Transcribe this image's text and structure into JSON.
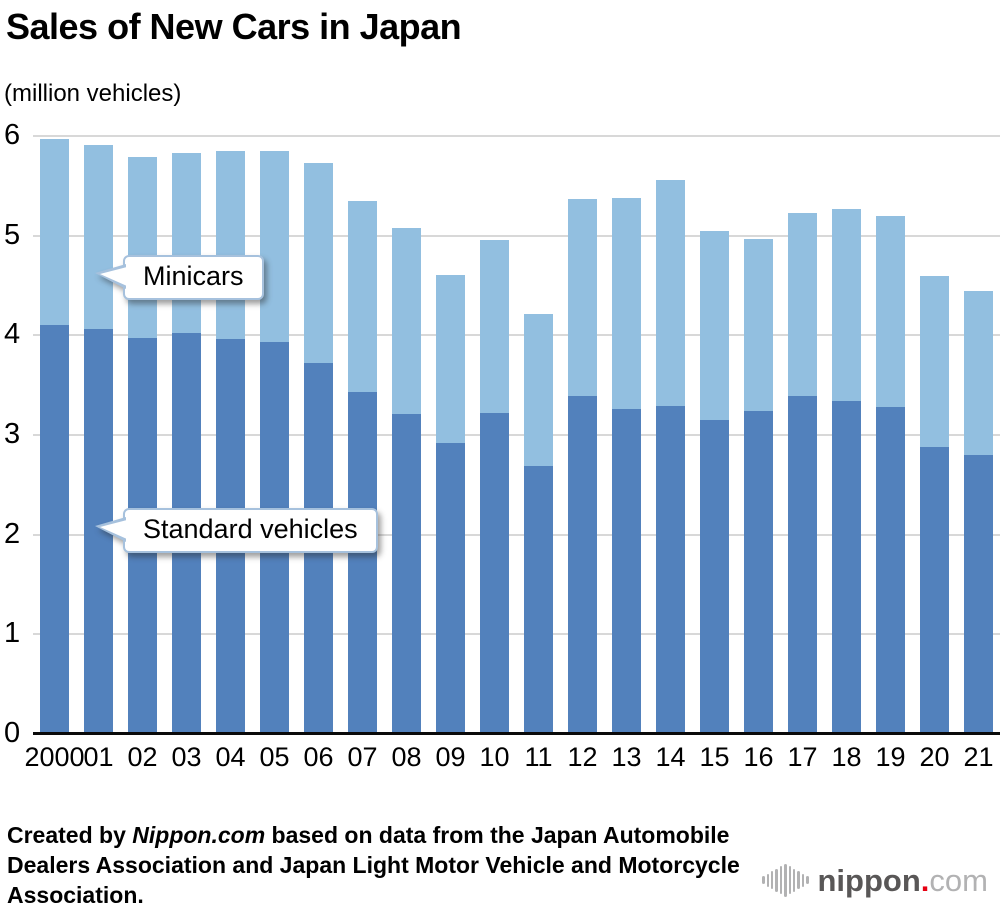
{
  "title": "Sales of New Cars in Japan",
  "subtitle": "(million vehicles)",
  "annotations": {
    "minicars": "Minicars",
    "standard": "Standard vehicles"
  },
  "footer": {
    "prefix": "Created by ",
    "source_name": "Nippon.com",
    "suffix": " based on data from the Japan Automobile Dealers Association and Japan Light Motor Vehicle and Motorcycle Association."
  },
  "logo": {
    "name": "nippon",
    "dot": ".",
    "tld": "com"
  },
  "colors": {
    "standard_bar": "#5281BC",
    "minicar_bar": "#92BFE0",
    "gridline": "#D8D8D8",
    "axis_line": "#0A0A0A",
    "callout_border": "#A6C1DD",
    "logo_dark_gray": "#595757",
    "logo_red": "#E60012",
    "logo_light_gray": "#B2B2B3"
  },
  "chart_data": {
    "type": "bar",
    "stacked": true,
    "title": "Sales of New Cars in Japan",
    "ylabel": "(million vehicles)",
    "ylim": [
      0,
      6
    ],
    "yticks": [
      "0",
      "1",
      "2",
      "3",
      "4",
      "5",
      "6"
    ],
    "grid": true,
    "legend_position": "inline callouts",
    "categories": [
      "2000",
      "01",
      "02",
      "03",
      "04",
      "05",
      "06",
      "07",
      "08",
      "09",
      "10",
      "11",
      "12",
      "13",
      "14",
      "15",
      "16",
      "17",
      "18",
      "19",
      "20",
      "21"
    ],
    "series": [
      {
        "name": "Standard vehicles",
        "color": "#5281BC",
        "values": [
          4.1,
          4.06,
          3.97,
          4.02,
          3.96,
          3.93,
          3.72,
          3.43,
          3.21,
          2.92,
          3.22,
          2.69,
          3.39,
          3.26,
          3.29,
          3.15,
          3.24,
          3.39,
          3.34,
          3.28,
          2.88,
          2.8
        ]
      },
      {
        "name": "Minicars",
        "color": "#92BFE0",
        "values": [
          1.87,
          1.85,
          1.82,
          1.81,
          1.89,
          1.92,
          2.01,
          1.92,
          1.87,
          1.69,
          1.74,
          1.52,
          1.98,
          2.12,
          2.27,
          1.9,
          1.73,
          1.84,
          1.93,
          1.92,
          1.72,
          1.65
        ]
      }
    ],
    "totals": [
      5.97,
      5.91,
      5.79,
      5.83,
      5.85,
      5.85,
      5.73,
      5.35,
      5.08,
      4.61,
      4.96,
      4.21,
      5.37,
      5.38,
      5.56,
      5.05,
      4.97,
      5.23,
      5.27,
      5.2,
      4.6,
      4.45
    ]
  }
}
